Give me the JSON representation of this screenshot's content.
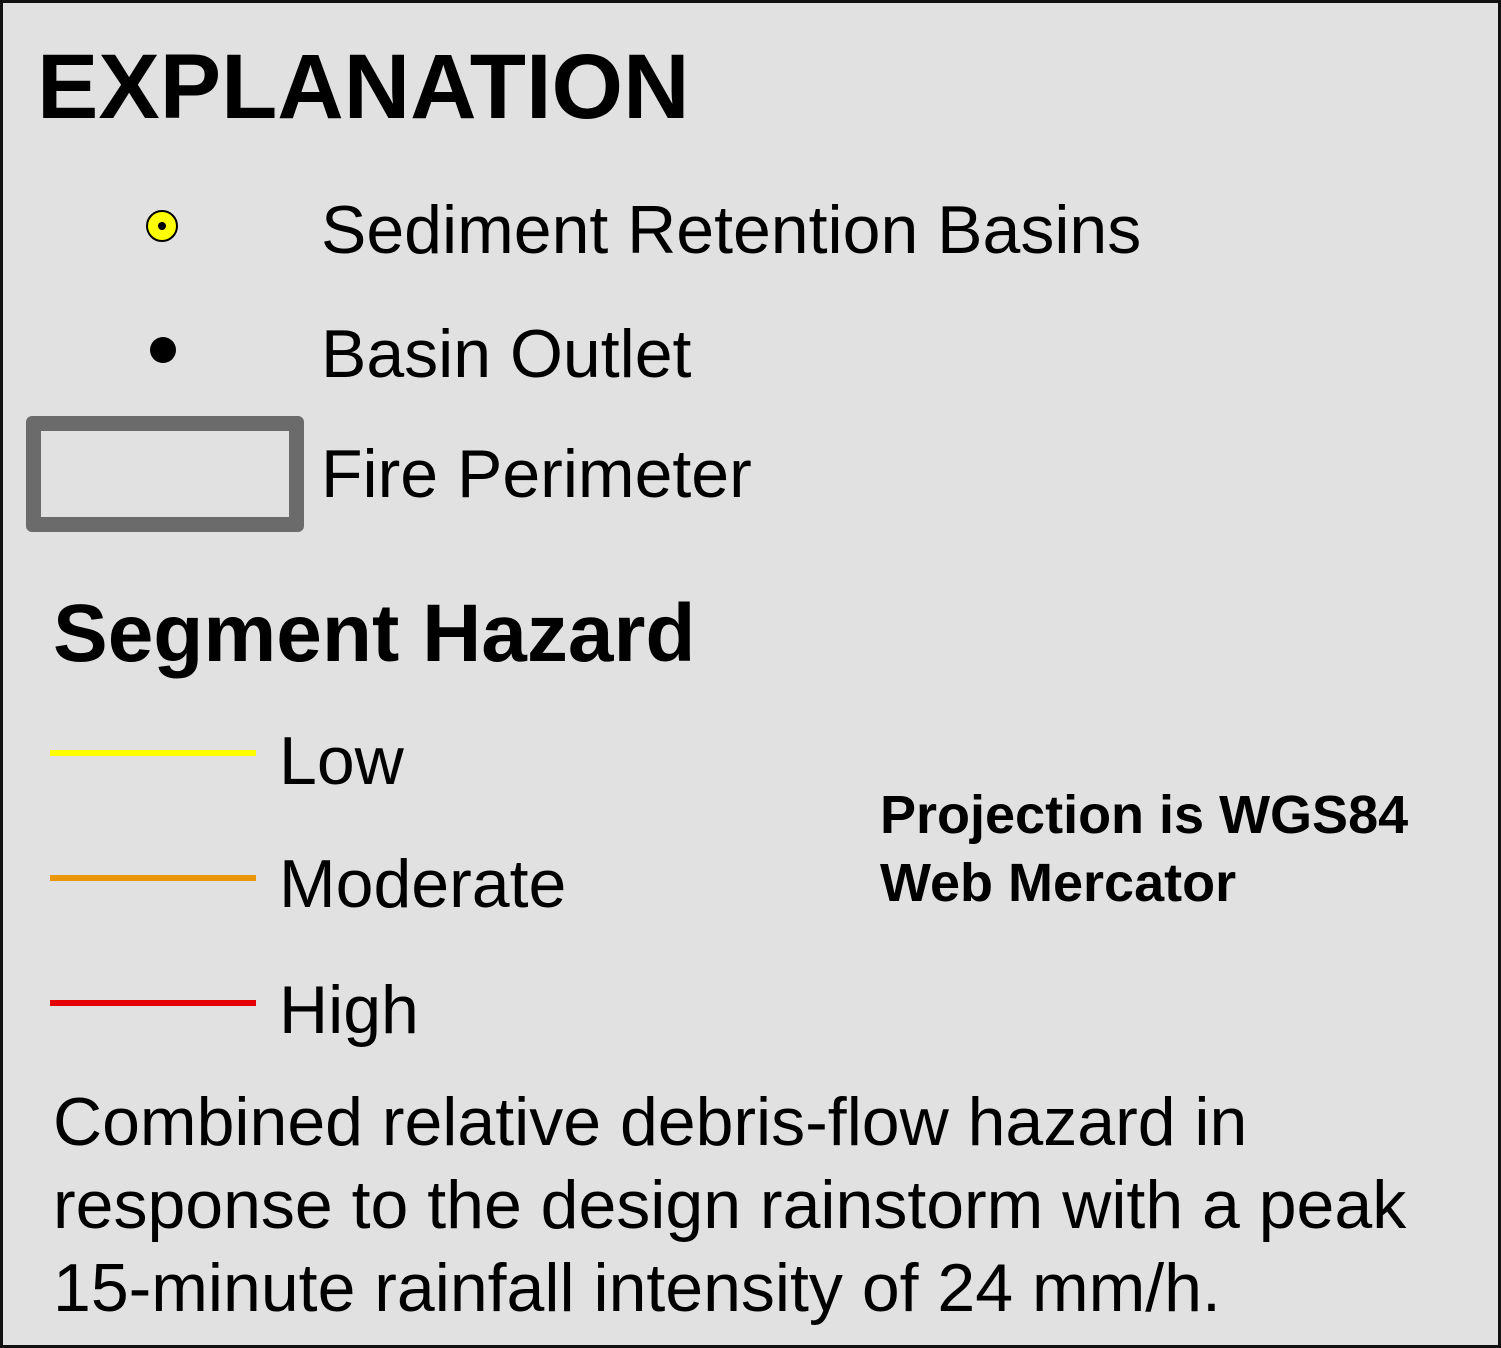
{
  "legend": {
    "title": "EXPLANATION",
    "symbols": {
      "sediment_basins": {
        "label": "Sediment Retention Basins",
        "fill": "#ffff00",
        "stroke": "#000000"
      },
      "basin_outlet": {
        "label": "Basin Outlet",
        "fill": "#000000"
      },
      "fire_perimeter": {
        "label": "Fire Perimeter",
        "stroke": "#6b6b6b"
      }
    },
    "segment_hazard": {
      "title": "Segment Hazard",
      "levels": [
        {
          "label": "Low",
          "color": "#ffff00"
        },
        {
          "label": "Moderate",
          "color": "#e8980a"
        },
        {
          "label": "High",
          "color": "#e60000"
        }
      ]
    },
    "projection": {
      "line1": "Projection is WGS84",
      "line2": "Web Mercator"
    },
    "caption": "Combined relative debris-flow hazard in response to the design rainstorm with a peak 15-minute rainfall intensity of 24 mm/h."
  }
}
